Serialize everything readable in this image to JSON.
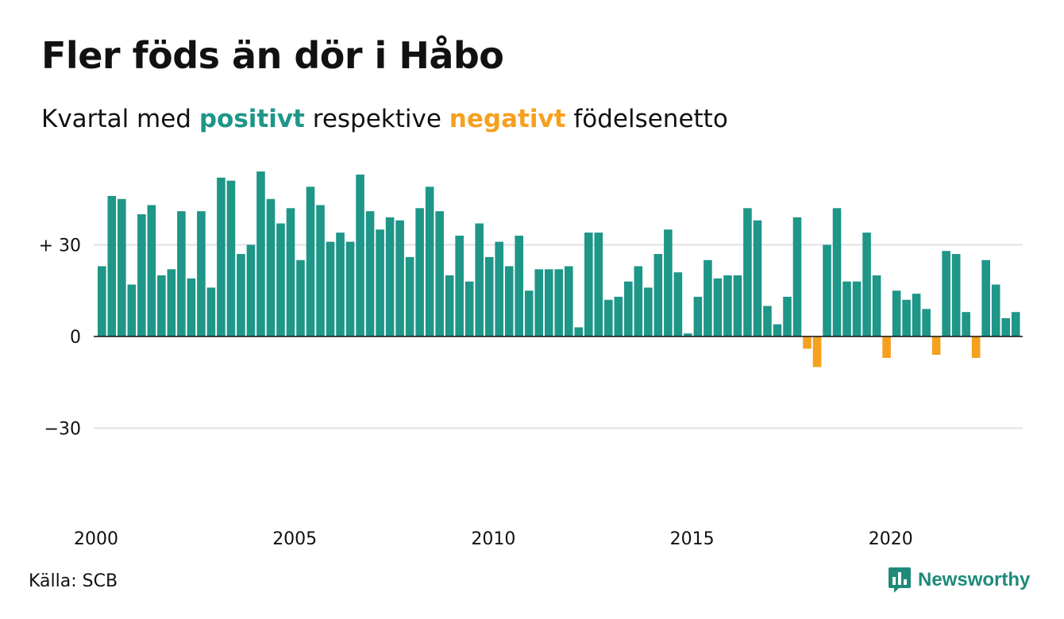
{
  "title": "Fler föds än dör i Håbo",
  "subtitle": {
    "prefix": "Kvartal med",
    "positive_word": "positivt",
    "middle": "respektive",
    "negative_word": "negativt",
    "suffix": "födelsenetto"
  },
  "source": "Källa: SCB",
  "brand": {
    "name": "Newsworthy",
    "icon": "bar-chart-speech-icon"
  },
  "colors": {
    "positive": "#1e9688",
    "negative": "#f5a01e",
    "grid": "#e0e0e0",
    "axis": "#111111",
    "brand": "#1e8a7a"
  },
  "chart_data": {
    "type": "bar",
    "x_start": "2000 Q1",
    "frequency": "quarterly",
    "x_tick_labels": [
      "2000",
      "2005",
      "2010",
      "2015",
      "2020"
    ],
    "y_tick_labels": [
      "+ 30",
      "0",
      "−30"
    ],
    "y_ticks": [
      30,
      0,
      -30
    ],
    "ylim": [
      -50,
      55
    ],
    "grid": true,
    "values": [
      23,
      46,
      45,
      17,
      40,
      43,
      20,
      22,
      41,
      19,
      41,
      16,
      52,
      51,
      27,
      30,
      54,
      45,
      37,
      42,
      25,
      49,
      43,
      31,
      34,
      31,
      53,
      41,
      35,
      39,
      38,
      26,
      42,
      49,
      41,
      20,
      33,
      18,
      37,
      26,
      31,
      23,
      33,
      15,
      22,
      22,
      22,
      23,
      3,
      34,
      34,
      12,
      13,
      18,
      23,
      16,
      27,
      35,
      21,
      1,
      13,
      25,
      19,
      20,
      20,
      42,
      38,
      10,
      4,
      13,
      39,
      -4,
      -10,
      30,
      42,
      18,
      18,
      34,
      20,
      -7,
      15,
      12,
      14,
      9,
      -6,
      28,
      27,
      8,
      -7,
      25,
      17,
      6,
      8
    ]
  }
}
